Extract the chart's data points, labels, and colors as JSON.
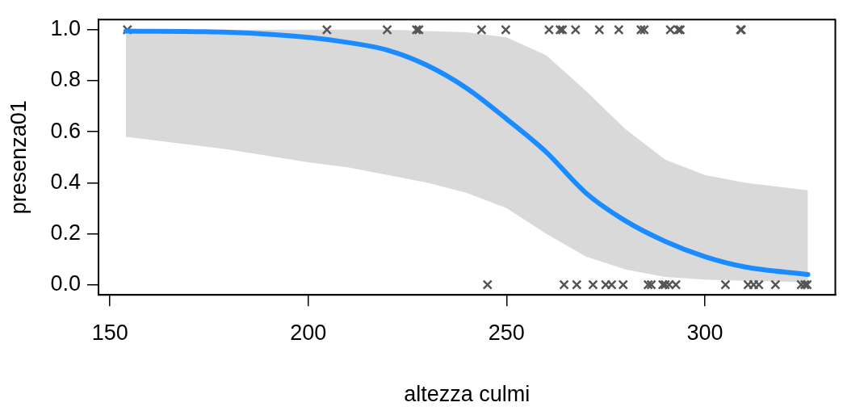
{
  "chart_data": {
    "type": "line",
    "xlabel": "altezza culmi",
    "ylabel": "presenza01",
    "xlim": [
      147.1,
      332.9
    ],
    "xticks": [
      150,
      200,
      250,
      300
    ],
    "ylim": [
      -0.04,
      1.04
    ],
    "yticks": [
      {
        "value": 0,
        "label": "0.0"
      },
      {
        "value": 0.2,
        "label": "0.2"
      },
      {
        "value": 0.4,
        "label": "0.4"
      },
      {
        "value": 0.6,
        "label": "0.6"
      },
      {
        "value": 0.8,
        "label": "0.8"
      },
      {
        "value": 1,
        "label": "1.0"
      }
    ],
    "grid": false,
    "legend": false,
    "line_style": "solid",
    "series": [
      {
        "type": "line",
        "marker": "none",
        "color": "#1a8cff",
        "x": [
          154,
          180,
          200,
          210,
          220,
          230,
          240,
          250,
          260,
          270,
          280,
          290,
          300,
          310,
          326
        ],
        "values": [
          0.995,
          0.99,
          0.97,
          0.95,
          0.92,
          0.86,
          0.77,
          0.65,
          0.52,
          0.36,
          0.25,
          0.17,
          0.11,
          0.07,
          0.04
        ],
        "lower": [
          0.58,
          0.53,
          0.48,
          0.46,
          0.43,
          0.4,
          0.36,
          0.3,
          0.2,
          0.11,
          0.06,
          0.03,
          0.02,
          0.015,
          0.01
        ],
        "upper": [
          1.0,
          1.0,
          1.0,
          1.0,
          1.0,
          0.995,
          0.99,
          0.97,
          0.9,
          0.76,
          0.61,
          0.49,
          0.43,
          0.4,
          0.37
        ]
      },
      {
        "type": "scatter",
        "marker": "cross",
        "color": "#555555",
        "x": [
          154.4,
          204.7,
          219.9,
          227.3,
          227.9,
          243.7,
          249.8,
          260.7,
          263.5,
          264.1,
          267.4,
          273.4,
          278.3,
          283.9,
          284.7,
          291.3,
          293.3,
          293.8,
          309.0,
          309.2
        ],
        "values": [
          1,
          1,
          1,
          1,
          1,
          1,
          1,
          1,
          1,
          1,
          1,
          1,
          1,
          1,
          1,
          1,
          1,
          1,
          1,
          1
        ]
      },
      {
        "type": "scatter",
        "marker": "cross",
        "color": "#555555",
        "x": [
          245.2,
          264.5,
          267.7,
          271.8,
          275.0,
          276.5,
          279.4,
          285.7,
          286.5,
          289.4,
          290.0,
          291.0,
          292.7,
          305.2,
          310.9,
          312.3,
          313.6,
          317.8,
          324.3,
          325.2,
          325.8
        ],
        "values": [
          0,
          0,
          0,
          0,
          0,
          0,
          0,
          0,
          0,
          0,
          0,
          0,
          0,
          0,
          0,
          0,
          0,
          0,
          0,
          0,
          0
        ]
      }
    ]
  }
}
